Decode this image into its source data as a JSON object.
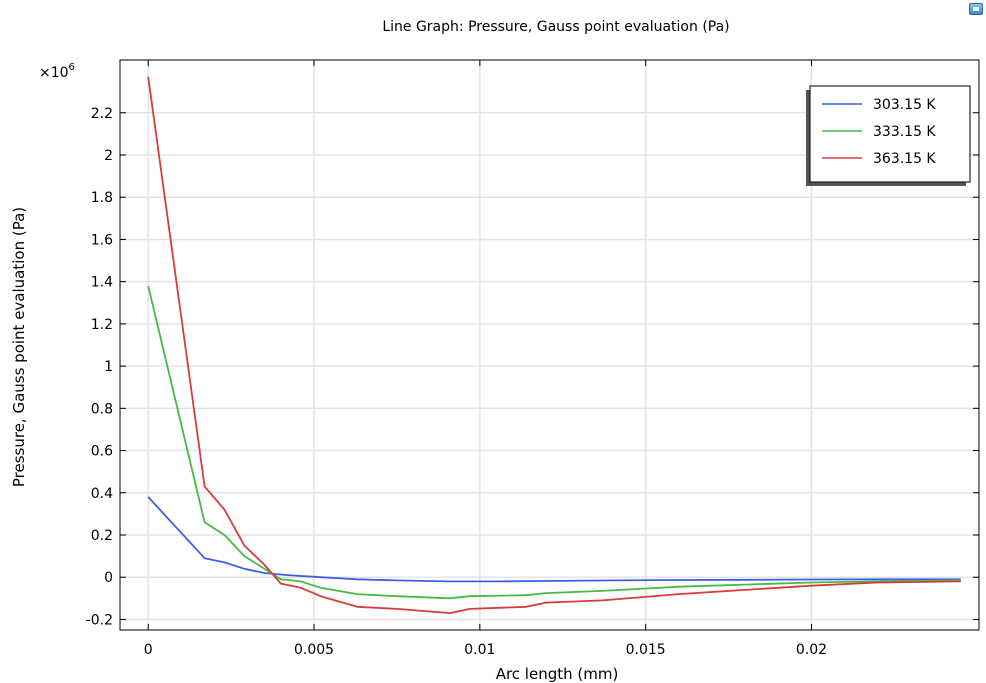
{
  "window": {
    "corner_icon": "window-icon"
  },
  "chart_data": {
    "type": "line",
    "title": "Line Graph: Pressure, Gauss point evaluation (Pa)",
    "xlabel": "Arc length (mm)",
    "ylabel": "Pressure, Gauss point evaluation (Pa)",
    "y_multiplier": "×10",
    "y_multiplier_exp": "6",
    "xlim": [
      -0.00085,
      0.02505
    ],
    "ylim": [
      -0.25,
      2.45
    ],
    "x_ticks": [
      0,
      0.005,
      0.01,
      0.015,
      0.02
    ],
    "x_tick_labels": [
      "0",
      "0.005",
      "0.01",
      "0.015",
      "0.02"
    ],
    "y_ticks": [
      -0.2,
      0,
      0.2,
      0.4,
      0.6,
      0.8,
      1,
      1.2,
      1.4,
      1.6,
      1.8,
      2,
      2.2
    ],
    "y_tick_labels": [
      "-0.2",
      "0",
      "0.2",
      "0.4",
      "0.6",
      "0.8",
      "1",
      "1.2",
      "1.4",
      "1.6",
      "1.8",
      "2",
      "2.2"
    ],
    "grid": true,
    "legend_position": "top-right",
    "series": [
      {
        "name": "303.15 K",
        "color": "#3c5fea",
        "x": [
          0,
          0.0017,
          0.0023,
          0.0029,
          0.0035,
          0.0042,
          0.0052,
          0.0063,
          0.0075,
          0.009,
          0.0105,
          0.012,
          0.014,
          0.016,
          0.018,
          0.02,
          0.022,
          0.0245
        ],
        "y": [
          0.38,
          0.09,
          0.07,
          0.04,
          0.02,
          0.01,
          0.0,
          -0.01,
          -0.015,
          -0.02,
          -0.02,
          -0.018,
          -0.015,
          -0.013,
          -0.012,
          -0.011,
          -0.01,
          -0.01
        ]
      },
      {
        "name": "333.15 K",
        "color": "#44bb44",
        "x": [
          0,
          0.0017,
          0.0023,
          0.0029,
          0.0035,
          0.004,
          0.0046,
          0.0052,
          0.0063,
          0.0075,
          0.0091,
          0.0097,
          0.0114,
          0.012,
          0.0137,
          0.016,
          0.018,
          0.02,
          0.022,
          0.0245
        ],
        "y": [
          1.38,
          0.26,
          0.2,
          0.1,
          0.04,
          -0.01,
          -0.02,
          -0.05,
          -0.08,
          -0.09,
          -0.1,
          -0.09,
          -0.085,
          -0.075,
          -0.065,
          -0.045,
          -0.035,
          -0.025,
          -0.02,
          -0.015
        ]
      },
      {
        "name": "363.15 K",
        "color": "#d93a3a",
        "x": [
          0,
          0.0017,
          0.0023,
          0.0029,
          0.0035,
          0.004,
          0.0046,
          0.0052,
          0.0063,
          0.0075,
          0.0091,
          0.0097,
          0.0114,
          0.012,
          0.0137,
          0.016,
          0.018,
          0.02,
          0.022,
          0.0245
        ],
        "y": [
          2.37,
          0.43,
          0.32,
          0.15,
          0.06,
          -0.03,
          -0.05,
          -0.09,
          -0.14,
          -0.15,
          -0.17,
          -0.15,
          -0.14,
          -0.12,
          -0.11,
          -0.08,
          -0.06,
          -0.04,
          -0.025,
          -0.02
        ]
      }
    ]
  }
}
